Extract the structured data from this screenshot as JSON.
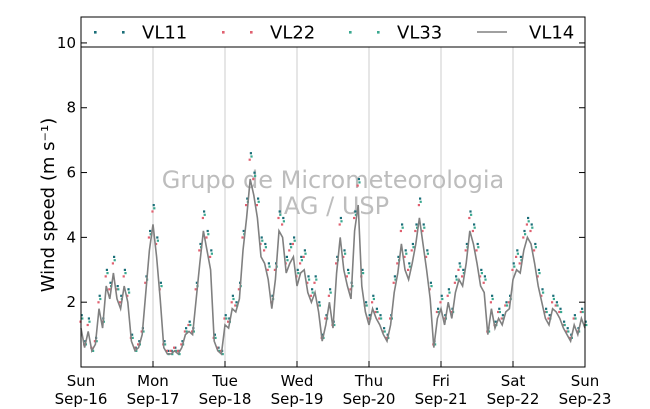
{
  "chart_data": {
    "type": "line",
    "ylabel": "Wind speed (m s⁻¹)",
    "ylim": [
      0,
      10.8
    ],
    "yticks": [
      2,
      4,
      6,
      8,
      10
    ],
    "ytick_labels": [
      "2",
      "4",
      "6",
      "8",
      "10"
    ],
    "xlim": [
      "2012-09-16 00:00",
      "2012-09-23 00:00"
    ],
    "xtick_labels": [
      {
        "day": "Sun",
        "date": "Sep-16"
      },
      {
        "day": "Mon",
        "date": "Sep-17"
      },
      {
        "day": "Tue",
        "date": "Sep-18"
      },
      {
        "day": "Wed",
        "date": "Sep-19"
      },
      {
        "day": "Thu",
        "date": "Sep-20"
      },
      {
        "day": "Fri",
        "date": "Sep-21"
      },
      {
        "day": "Sat",
        "date": "Sep-22"
      },
      {
        "day": "Sun",
        "date": "Sep-23"
      }
    ],
    "grid": "vertical",
    "legend_position": "top",
    "watermark": [
      "Grupo de Micrometeorologia",
      "IAG / USP"
    ],
    "x": [
      0,
      0.05,
      0.1,
      0.15,
      0.2,
      0.25,
      0.3,
      0.35,
      0.4,
      0.45,
      0.5,
      0.55,
      0.6,
      0.65,
      0.7,
      0.75,
      0.8,
      0.85,
      0.9,
      0.95,
      1,
      1.05,
      1.1,
      1.15,
      1.2,
      1.25,
      1.3,
      1.35,
      1.4,
      1.45,
      1.5,
      1.55,
      1.6,
      1.65,
      1.7,
      1.75,
      1.8,
      1.85,
      1.9,
      1.95,
      2,
      2.05,
      2.1,
      2.15,
      2.2,
      2.25,
      2.3,
      2.35,
      2.4,
      2.45,
      2.5,
      2.55,
      2.6,
      2.65,
      2.7,
      2.75,
      2.8,
      2.85,
      2.9,
      2.95,
      3,
      3.05,
      3.1,
      3.15,
      3.2,
      3.25,
      3.3,
      3.35,
      3.4,
      3.45,
      3.5,
      3.55,
      3.6,
      3.65,
      3.7,
      3.75,
      3.8,
      3.85,
      3.9,
      3.95,
      4,
      4.05,
      4.1,
      4.15,
      4.2,
      4.25,
      4.3,
      4.35,
      4.4,
      4.45,
      4.5,
      4.55,
      4.6,
      4.65,
      4.7,
      4.75,
      4.8,
      4.85,
      4.9,
      4.95,
      5,
      5.05,
      5.1,
      5.15,
      5.2,
      5.25,
      5.3,
      5.35,
      5.4,
      5.45,
      5.5,
      5.55,
      5.6,
      5.65,
      5.7,
      5.75,
      5.8,
      5.85,
      5.9,
      5.95,
      6,
      6.05,
      6.1,
      6.15,
      6.2,
      6.25,
      6.3,
      6.35,
      6.4,
      6.45,
      6.5,
      6.55,
      6.6,
      6.65,
      6.7,
      6.75,
      6.8,
      6.85,
      6.9,
      6.95,
      7
    ],
    "series": [
      {
        "name": "VL11",
        "style": "dots",
        "color": "#1a6e78",
        "values": [
          1.6,
          0.8,
          1.5,
          0.5,
          0.9,
          2.2,
          1.5,
          3.0,
          2.6,
          3.4,
          2.5,
          2.2,
          3.0,
          2.4,
          1.0,
          0.6,
          0.8,
          1.2,
          2.8,
          4.2,
          5.0,
          4.0,
          2.6,
          0.8,
          0.5,
          0.5,
          0.6,
          0.5,
          0.8,
          1.2,
          1.4,
          1.2,
          2.6,
          3.8,
          4.8,
          4.2,
          3.6,
          1.0,
          0.6,
          0.5,
          1.6,
          1.5,
          2.2,
          2.0,
          2.6,
          4.2,
          5.2,
          6.6,
          6.0,
          5.2,
          4.0,
          3.8,
          3.2,
          2.2,
          3.2,
          4.8,
          4.6,
          3.4,
          3.8,
          4.0,
          3.0,
          3.4,
          3.6,
          2.8,
          2.4,
          2.8,
          2.0,
          1.0,
          1.6,
          2.4,
          1.4,
          3.4,
          4.6,
          3.6,
          3.0,
          2.6,
          4.8,
          5.8,
          3.0,
          2.0,
          1.6,
          2.2,
          1.8,
          1.6,
          1.2,
          1.0,
          1.6,
          2.8,
          3.4,
          4.4,
          3.6,
          3.2,
          3.8,
          4.4,
          5.2,
          4.4,
          3.6,
          2.6,
          0.8,
          1.8,
          2.2,
          1.6,
          2.4,
          1.8,
          2.8,
          3.2,
          3.0,
          3.8,
          4.8,
          4.4,
          3.8,
          3.0,
          2.8,
          1.2,
          2.2,
          1.4,
          1.8,
          1.6,
          2.0,
          2.2,
          3.2,
          3.6,
          3.4,
          4.2,
          4.6,
          4.4,
          3.8,
          3.0,
          2.4,
          1.8,
          1.6,
          2.2,
          2.0,
          1.8,
          1.4,
          1.2,
          1.0,
          1.6,
          1.2,
          1.8,
          1.4
        ]
      },
      {
        "name": "VL22",
        "style": "dots",
        "color": "#e06070",
        "values": [
          1.4,
          0.7,
          1.3,
          0.6,
          0.8,
          2.0,
          1.4,
          2.8,
          2.4,
          3.2,
          2.4,
          2.0,
          2.8,
          2.2,
          0.9,
          0.6,
          0.7,
          1.1,
          2.6,
          4.0,
          4.8,
          3.8,
          2.4,
          0.7,
          0.5,
          0.5,
          0.6,
          0.5,
          0.7,
          1.1,
          1.3,
          1.1,
          2.4,
          3.6,
          4.6,
          4.0,
          3.4,
          0.9,
          0.6,
          0.5,
          1.5,
          1.4,
          2.0,
          1.9,
          2.4,
          4.0,
          5.0,
          6.4,
          5.8,
          5.0,
          3.8,
          3.6,
          3.0,
          2.0,
          3.0,
          4.6,
          4.4,
          3.2,
          3.6,
          3.8,
          2.8,
          3.2,
          3.4,
          2.6,
          2.2,
          2.6,
          1.9,
          0.9,
          1.5,
          2.2,
          1.3,
          3.2,
          4.4,
          3.4,
          2.8,
          2.4,
          4.6,
          5.6,
          2.8,
          1.9,
          1.5,
          2.0,
          1.7,
          1.5,
          1.1,
          0.9,
          1.5,
          2.6,
          3.2,
          4.2,
          3.4,
          3.0,
          3.6,
          4.2,
          5.0,
          4.2,
          3.4,
          2.4,
          0.7,
          1.7,
          2.0,
          1.5,
          2.2,
          1.7,
          2.6,
          3.0,
          2.8,
          3.6,
          4.6,
          4.2,
          3.6,
          2.8,
          2.6,
          1.1,
          2.0,
          1.3,
          1.7,
          1.5,
          1.9,
          2.0,
          3.0,
          3.4,
          3.2,
          4.0,
          4.4,
          4.2,
          3.6,
          2.8,
          2.2,
          1.7,
          1.5,
          2.0,
          1.9,
          1.7,
          1.3,
          1.1,
          0.9,
          1.5,
          1.1,
          1.7,
          1.3
        ]
      },
      {
        "name": "VL33",
        "style": "dots",
        "color": "#3aa890",
        "values": [
          1.5,
          0.7,
          1.4,
          0.5,
          0.8,
          2.1,
          1.4,
          2.9,
          2.5,
          3.3,
          2.4,
          2.1,
          2.9,
          2.3,
          0.9,
          0.5,
          0.7,
          1.1,
          2.7,
          4.1,
          4.9,
          3.9,
          2.5,
          0.7,
          0.4,
          0.4,
          0.5,
          0.4,
          0.7,
          1.1,
          1.3,
          1.1,
          2.5,
          3.7,
          4.7,
          4.1,
          3.5,
          0.9,
          0.5,
          0.4,
          1.5,
          1.4,
          2.1,
          1.9,
          2.5,
          4.1,
          5.1,
          6.5,
          5.9,
          5.1,
          3.9,
          3.7,
          3.1,
          2.1,
          3.1,
          4.7,
          4.5,
          3.3,
          3.7,
          3.9,
          2.9,
          3.3,
          3.5,
          2.7,
          2.3,
          2.7,
          1.9,
          0.9,
          1.5,
          2.3,
          1.3,
          3.3,
          4.5,
          3.5,
          2.9,
          2.5,
          4.7,
          5.7,
          2.9,
          1.9,
          1.5,
          2.1,
          1.7,
          1.5,
          1.1,
          0.9,
          1.5,
          2.7,
          3.3,
          4.3,
          3.5,
          3.1,
          3.7,
          4.3,
          5.1,
          4.3,
          3.5,
          2.5,
          0.7,
          1.7,
          2.1,
          1.5,
          2.3,
          1.7,
          2.7,
          3.1,
          2.9,
          3.7,
          4.7,
          4.3,
          3.7,
          2.9,
          2.7,
          1.1,
          2.1,
          1.3,
          1.7,
          1.5,
          1.9,
          2.1,
          3.1,
          3.5,
          3.3,
          4.1,
          4.5,
          4.3,
          3.7,
          2.9,
          2.3,
          1.7,
          1.5,
          2.1,
          1.9,
          1.7,
          1.3,
          1.1,
          0.9,
          1.5,
          1.1,
          1.7,
          1.3
        ]
      },
      {
        "name": "VL14",
        "style": "line",
        "color": "#808080",
        "values": [
          1.2,
          0.6,
          1.1,
          0.5,
          0.7,
          1.8,
          1.2,
          2.5,
          2.1,
          2.9,
          2.1,
          1.8,
          2.5,
          2.0,
          0.8,
          0.5,
          0.6,
          1.0,
          2.3,
          3.6,
          4.4,
          3.4,
          2.1,
          0.6,
          0.4,
          0.4,
          0.5,
          0.4,
          0.6,
          1.0,
          1.1,
          1.0,
          2.1,
          3.2,
          4.2,
          3.6,
          3.0,
          0.8,
          0.5,
          0.4,
          1.3,
          1.2,
          1.8,
          1.7,
          2.1,
          3.6,
          4.6,
          5.8,
          5.3,
          4.6,
          3.4,
          3.2,
          2.7,
          1.8,
          2.7,
          4.2,
          4.0,
          2.9,
          3.2,
          3.4,
          2.5,
          2.9,
          3.0,
          2.3,
          2.0,
          2.3,
          1.7,
          0.8,
          1.3,
          2.0,
          1.2,
          2.9,
          4.0,
          3.0,
          2.5,
          2.1,
          4.2,
          5.0,
          2.5,
          1.7,
          1.3,
          1.8,
          1.5,
          1.3,
          1.0,
          0.8,
          1.3,
          2.3,
          2.9,
          3.8,
          3.0,
          2.7,
          3.2,
          3.8,
          4.6,
          3.8,
          3.0,
          2.1,
          0.6,
          1.5,
          1.8,
          1.3,
          2.0,
          1.5,
          2.3,
          2.7,
          2.5,
          3.2,
          4.2,
          3.8,
          3.2,
          2.5,
          2.3,
          1.0,
          1.8,
          1.2,
          1.5,
          1.3,
          1.7,
          1.8,
          2.7,
          3.0,
          2.9,
          3.6,
          4.0,
          3.8,
          3.2,
          2.5,
          2.0,
          1.5,
          1.3,
          1.8,
          1.7,
          1.5,
          1.2,
          1.0,
          0.8,
          1.3,
          1.0,
          1.5,
          1.2
        ]
      }
    ]
  }
}
